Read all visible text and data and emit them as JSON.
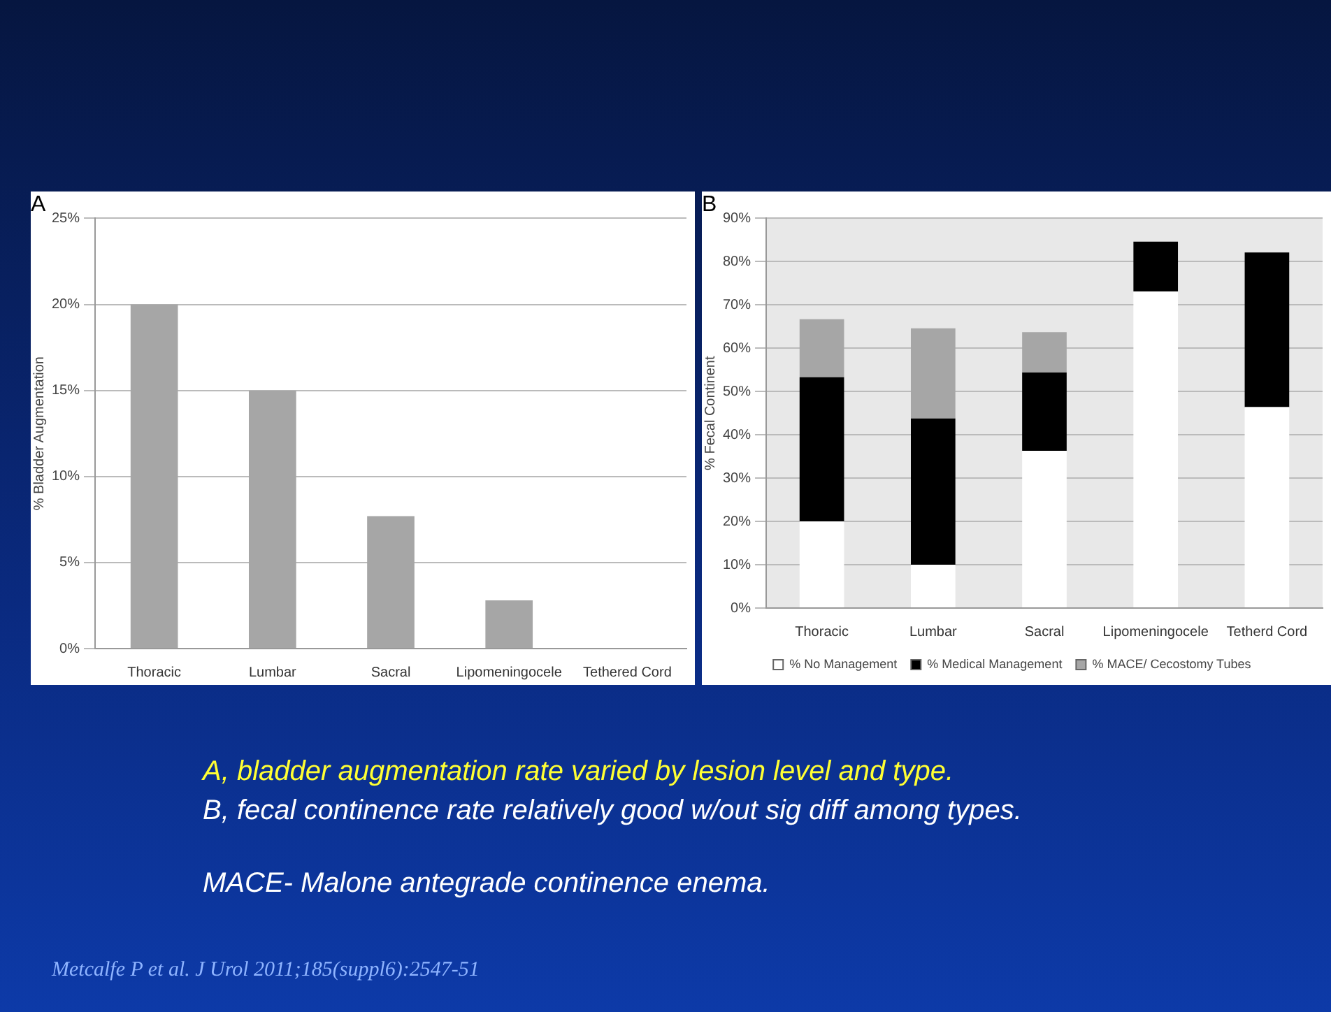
{
  "chart_data": [
    {
      "type": "bar",
      "title": "A",
      "ylabel": "% Bladder Augmentation",
      "categories": [
        "Thoracic",
        "Lumbar",
        "Sacral",
        "Lipomeningocele",
        "Tethered Cord"
      ],
      "values": [
        20,
        15,
        7.7,
        2.8,
        0
      ],
      "color": "#a6a6a6",
      "ylim": [
        0,
        25
      ],
      "yticks": [
        {
          "value": 0,
          "label": "0%"
        },
        {
          "value": 5,
          "label": "5%"
        },
        {
          "value": 10,
          "label": "10%"
        },
        {
          "value": 15,
          "label": "15%"
        },
        {
          "value": 20,
          "label": "20%"
        },
        {
          "value": 25,
          "label": "25%"
        }
      ],
      "grid": "y",
      "annotations": [
        "A, bladder augmentation rate varied by lesion level and type.",
        "B, fecal continence rate relatively good w/out sig diff among types.",
        "MACE- Malone antegrade continence enema.",
        "Metcalfe P et al. J Urol 2011;185(suppl6):2547-51"
      ]
    },
    {
      "type": "bar",
      "title": "B",
      "ylabel": "% Fecal Continent",
      "categories": [
        "Thoracic",
        "Lumbar",
        "Sacral",
        "Lipomeningocele",
        "Tetherd Cord"
      ],
      "stacked": true,
      "series": [
        {
          "name": "% No Management",
          "color": "#ffffff",
          "values": [
            20,
            10,
            36.3,
            73.1,
            46.4
          ]
        },
        {
          "name": "% Medical Management",
          "color": "#000000",
          "values": [
            33.3,
            33.8,
            18.1,
            11.5,
            35.7
          ]
        },
        {
          "name": "% MACE/ Cecostomy Tubes",
          "color": "#a6a6a6",
          "values": [
            13.4,
            20.8,
            9.3,
            0,
            0
          ]
        }
      ],
      "ylim": [
        0,
        90
      ],
      "yticks": [
        {
          "value": 0,
          "label": "0%"
        },
        {
          "value": 10,
          "label": "10%"
        },
        {
          "value": 20,
          "label": "20%"
        },
        {
          "value": 30,
          "label": "30%"
        },
        {
          "value": 40,
          "label": "40%"
        },
        {
          "value": 50,
          "label": "50%"
        },
        {
          "value": 60,
          "label": "60%"
        },
        {
          "value": 70,
          "label": "70%"
        },
        {
          "value": 80,
          "label": "80%"
        },
        {
          "value": 90,
          "label": "90%"
        }
      ],
      "grid": "y",
      "legend": "bottom"
    }
  ]
}
